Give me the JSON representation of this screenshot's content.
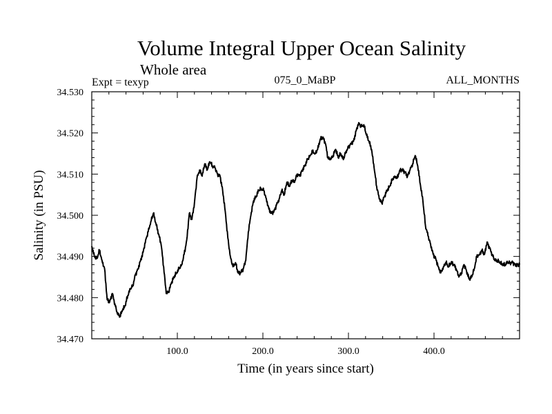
{
  "chart_data": {
    "type": "line",
    "title": "Volume Integral Upper Ocean Salinity",
    "subtitle": "Whole area",
    "annotations": {
      "left": "Expt = texyp",
      "center": "075_0_MaBP",
      "right": "ALL_MONTHS"
    },
    "xlabel": "Time (in years since start)",
    "ylabel": "Salinity (in PSU)",
    "xlim": [
      0,
      500
    ],
    "ylim": [
      34.47,
      34.53
    ],
    "xticks": [
      100,
      200,
      300,
      400
    ],
    "xtick_labels": [
      "100.0",
      "200.0",
      "300.0",
      "400.0"
    ],
    "yticks": [
      34.47,
      34.48,
      34.49,
      34.5,
      34.51,
      34.52,
      34.53
    ],
    "ytick_labels": [
      "34.470",
      "34.480",
      "34.490",
      "34.500",
      "34.510",
      "34.520",
      "34.530"
    ],
    "grid": false,
    "line_color": "#000000",
    "series": [
      {
        "x": [
          0,
          3,
          6,
          9,
          12,
          15,
          18,
          21,
          24,
          27,
          30,
          33,
          36,
          39,
          42,
          45,
          48,
          51,
          54,
          57,
          60,
          63,
          66,
          69,
          72,
          75,
          78,
          81,
          84,
          87,
          90,
          93,
          96,
          99,
          102,
          105,
          108,
          111,
          114,
          117,
          120,
          123,
          126,
          129,
          132,
          135,
          138,
          141,
          144,
          147,
          150,
          153,
          156,
          159,
          162,
          165,
          168,
          171,
          174,
          177,
          180,
          183,
          186,
          189,
          192,
          195,
          198,
          201,
          204,
          207,
          210,
          213,
          216,
          219,
          222,
          225,
          228,
          231,
          234,
          237,
          240,
          243,
          246,
          249,
          252,
          255,
          258,
          261,
          264,
          267,
          270,
          273,
          276,
          279,
          282,
          285,
          288,
          291,
          294,
          297,
          300,
          303,
          306,
          309,
          312,
          315,
          318,
          321,
          324,
          327,
          330,
          333,
          336,
          339,
          342,
          345,
          348,
          351,
          354,
          357,
          360,
          363,
          366,
          369,
          372,
          375,
          378,
          381,
          384,
          387,
          390,
          393,
          396,
          399,
          402,
          405,
          408,
          411,
          414,
          417,
          420,
          423,
          426,
          429,
          432,
          435,
          438,
          441,
          444,
          447,
          450,
          453,
          456,
          459,
          462,
          465,
          468,
          471,
          474,
          477,
          480,
          483,
          486,
          489,
          492,
          495,
          498,
          500
        ],
        "values": [
          34.4925,
          34.49,
          34.4895,
          34.4915,
          34.489,
          34.487,
          34.4795,
          34.479,
          34.481,
          34.4785,
          34.476,
          34.4755,
          34.477,
          34.478,
          34.4805,
          34.482,
          34.483,
          34.4855,
          34.487,
          34.489,
          34.491,
          34.494,
          34.496,
          34.4985,
          34.5005,
          34.498,
          34.4955,
          34.493,
          34.4875,
          34.481,
          34.4815,
          34.4835,
          34.485,
          34.486,
          34.487,
          34.488,
          34.4905,
          34.494,
          34.5005,
          34.499,
          34.503,
          34.509,
          34.511,
          34.5095,
          34.5125,
          34.511,
          34.513,
          34.512,
          34.5115,
          34.51,
          34.5095,
          34.506,
          34.501,
          34.4945,
          34.49,
          34.4875,
          34.4885,
          34.486,
          34.486,
          34.487,
          34.489,
          34.496,
          34.5,
          34.5035,
          34.5045,
          34.506,
          34.5065,
          34.506,
          34.504,
          34.5015,
          34.5005,
          34.501,
          34.5025,
          34.504,
          34.506,
          34.505,
          34.508,
          34.507,
          34.5085,
          34.508,
          34.51,
          34.5095,
          34.511,
          34.512,
          34.5135,
          34.5145,
          34.5155,
          34.515,
          34.516,
          34.5185,
          34.519,
          34.5175,
          34.514,
          34.5135,
          34.5145,
          34.516,
          34.514,
          34.515,
          34.5135,
          34.5155,
          34.5165,
          34.5175,
          34.518,
          34.5205,
          34.5225,
          34.5215,
          34.522,
          34.5195,
          34.518,
          34.516,
          34.5115,
          34.507,
          34.504,
          34.503,
          34.5045,
          34.506,
          34.507,
          34.5085,
          34.5095,
          34.509,
          34.511,
          34.511,
          34.5105,
          34.5095,
          34.511,
          34.5125,
          34.5145,
          34.512,
          34.5075,
          34.5035,
          34.4975,
          34.495,
          34.493,
          34.4905,
          34.4895,
          34.4875,
          34.486,
          34.4875,
          34.4885,
          34.4875,
          34.4885,
          34.488,
          34.487,
          34.485,
          34.486,
          34.488,
          34.4865,
          34.4845,
          34.485,
          34.487,
          34.49,
          34.4905,
          34.4915,
          34.4905,
          34.4935,
          34.492,
          34.4905,
          34.489,
          34.489,
          34.4885,
          34.488,
          34.488,
          34.4885,
          34.4885,
          34.4885,
          34.488,
          34.488,
          34.488
        ]
      }
    ]
  }
}
